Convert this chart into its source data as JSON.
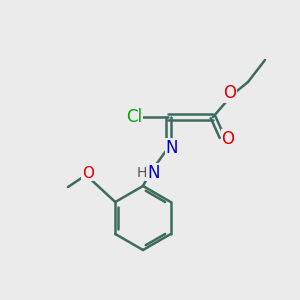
{
  "bg_color": "#ebebeb",
  "bond_color": "#3d6b5e",
  "bond_lw": 1.8,
  "colors": {
    "C": "#000000",
    "O": "#dd0000",
    "N": "#0000cc",
    "Cl": "#00aa00",
    "H": "#555555"
  },
  "font_size": 11,
  "font_size_small": 10
}
